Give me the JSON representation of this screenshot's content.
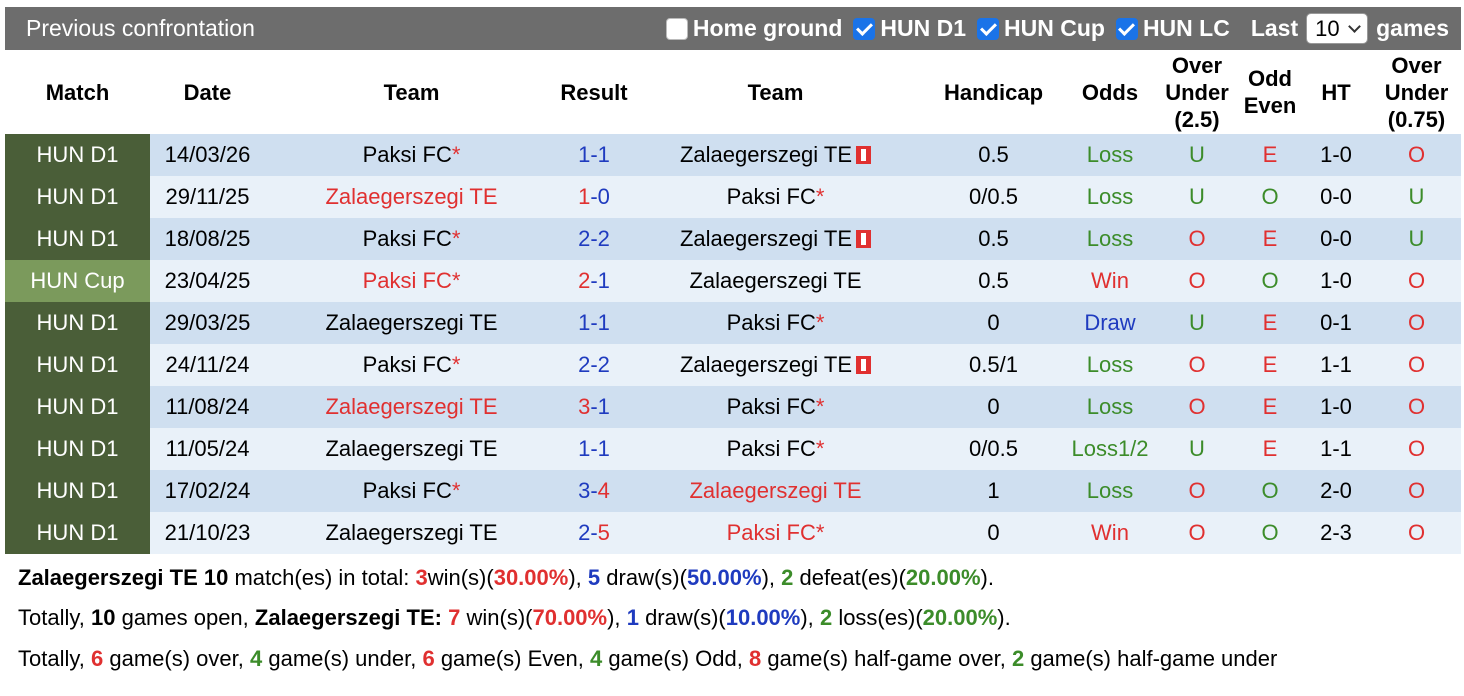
{
  "header": {
    "title": "Previous confrontation",
    "filters": [
      {
        "label": "Home ground",
        "checked": false
      },
      {
        "label": "HUN D1",
        "checked": true
      },
      {
        "label": "HUN Cup",
        "checked": true
      },
      {
        "label": "HUN LC",
        "checked": true
      }
    ],
    "last_label": "Last",
    "last_value": "10",
    "games_label": "games"
  },
  "columns": {
    "match": "Match",
    "date": "Date",
    "team": "Team",
    "result": "Result",
    "team2": "Team",
    "handicap": "Handicap",
    "odds": "Odds",
    "ou": "Over Under (2.5)",
    "oe": "Odd Even",
    "ht": "HT",
    "ou2": "Over Under (0.75)"
  },
  "rows": [
    {
      "league": "HUN D1",
      "cup": false,
      "date": "14/03/26",
      "home": "Paksi FC",
      "home_star": true,
      "home_red": false,
      "score_h": "1",
      "score_a": "1",
      "score_color": "blue",
      "away": "Zalaegerszegi TE",
      "away_star": false,
      "away_red": false,
      "away_badge": true,
      "handicap": "0.5",
      "odds": "Loss",
      "odds_color": "green",
      "ou": "U",
      "ou_color": "green",
      "oe": "E",
      "oe_color": "red",
      "ht": "1-0",
      "ou2": "O",
      "ou2_color": "red"
    },
    {
      "league": "HUN D1",
      "cup": false,
      "date": "29/11/25",
      "home": "Zalaegerszegi TE",
      "home_star": false,
      "home_red": true,
      "score_h": "1",
      "score_a": "0",
      "score_color": "red",
      "away": "Paksi FC",
      "away_star": true,
      "away_red": false,
      "away_badge": false,
      "handicap": "0/0.5",
      "odds": "Loss",
      "odds_color": "green",
      "ou": "U",
      "ou_color": "green",
      "oe": "O",
      "oe_color": "green",
      "ht": "0-0",
      "ou2": "U",
      "ou2_color": "green"
    },
    {
      "league": "HUN D1",
      "cup": false,
      "date": "18/08/25",
      "home": "Paksi FC",
      "home_star": true,
      "home_red": false,
      "score_h": "2",
      "score_a": "2",
      "score_color": "blue",
      "away": "Zalaegerszegi TE",
      "away_star": false,
      "away_red": false,
      "away_badge": true,
      "handicap": "0.5",
      "odds": "Loss",
      "odds_color": "green",
      "ou": "O",
      "ou_color": "red",
      "oe": "E",
      "oe_color": "red",
      "ht": "0-0",
      "ou2": "U",
      "ou2_color": "green"
    },
    {
      "league": "HUN Cup",
      "cup": true,
      "date": "23/04/25",
      "home": "Paksi FC",
      "home_star": true,
      "home_red": true,
      "score_h": "2",
      "score_a": "1",
      "score_color": "red",
      "away": "Zalaegerszegi TE",
      "away_star": false,
      "away_red": false,
      "away_badge": false,
      "handicap": "0.5",
      "odds": "Win",
      "odds_color": "red",
      "ou": "O",
      "ou_color": "red",
      "oe": "O",
      "oe_color": "green",
      "ht": "1-0",
      "ou2": "O",
      "ou2_color": "red"
    },
    {
      "league": "HUN D1",
      "cup": false,
      "date": "29/03/25",
      "home": "Zalaegerszegi TE",
      "home_star": false,
      "home_red": false,
      "score_h": "1",
      "score_a": "1",
      "score_color": "blue",
      "away": "Paksi FC",
      "away_star": true,
      "away_red": false,
      "away_badge": false,
      "handicap": "0",
      "odds": "Draw",
      "odds_color": "blue",
      "ou": "U",
      "ou_color": "green",
      "oe": "E",
      "oe_color": "red",
      "ht": "0-1",
      "ou2": "O",
      "ou2_color": "red"
    },
    {
      "league": "HUN D1",
      "cup": false,
      "date": "24/11/24",
      "home": "Paksi FC",
      "home_star": true,
      "home_red": false,
      "score_h": "2",
      "score_a": "2",
      "score_color": "blue",
      "away": "Zalaegerszegi TE",
      "away_star": false,
      "away_red": false,
      "away_badge": true,
      "handicap": "0.5/1",
      "odds": "Loss",
      "odds_color": "green",
      "ou": "O",
      "ou_color": "red",
      "oe": "E",
      "oe_color": "red",
      "ht": "1-1",
      "ou2": "O",
      "ou2_color": "red"
    },
    {
      "league": "HUN D1",
      "cup": false,
      "date": "11/08/24",
      "home": "Zalaegerszegi TE",
      "home_star": false,
      "home_red": true,
      "score_h": "3",
      "score_a": "1",
      "score_color": "red",
      "away": "Paksi FC",
      "away_star": true,
      "away_red": false,
      "away_badge": false,
      "handicap": "0",
      "odds": "Loss",
      "odds_color": "green",
      "ou": "O",
      "ou_color": "red",
      "oe": "E",
      "oe_color": "red",
      "ht": "1-0",
      "ou2": "O",
      "ou2_color": "red"
    },
    {
      "league": "HUN D1",
      "cup": false,
      "date": "11/05/24",
      "home": "Zalaegerszegi TE",
      "home_star": false,
      "home_red": false,
      "score_h": "1",
      "score_a": "1",
      "score_color": "blue",
      "away": "Paksi FC",
      "away_star": true,
      "away_red": false,
      "away_badge": false,
      "handicap": "0/0.5",
      "odds": "Loss1/2",
      "odds_color": "green",
      "ou": "U",
      "ou_color": "green",
      "oe": "E",
      "oe_color": "red",
      "ht": "1-1",
      "ou2": "O",
      "ou2_color": "red"
    },
    {
      "league": "HUN D1",
      "cup": false,
      "date": "17/02/24",
      "home": "Paksi FC",
      "home_star": true,
      "home_red": false,
      "score_h": "3",
      "score_a": "4",
      "score_color": "blue",
      "away": "Zalaegerszegi TE",
      "away_star": false,
      "away_red": true,
      "away_badge": false,
      "handicap": "1",
      "odds": "Loss",
      "odds_color": "green",
      "ou": "O",
      "ou_color": "red",
      "oe": "O",
      "oe_color": "green",
      "ht": "2-0",
      "ou2": "O",
      "ou2_color": "red"
    },
    {
      "league": "HUN D1",
      "cup": false,
      "date": "21/10/23",
      "home": "Zalaegerszegi TE",
      "home_star": false,
      "home_red": false,
      "score_h": "2",
      "score_a": "5",
      "score_color": "blue",
      "away": "Paksi FC",
      "away_star": true,
      "away_red": true,
      "away_badge": false,
      "handicap": "0",
      "odds": "Win",
      "odds_color": "red",
      "ou": "O",
      "ou_color": "red",
      "oe": "O",
      "oe_color": "green",
      "ht": "2-3",
      "ou2": "O",
      "ou2_color": "red"
    }
  ],
  "summary": {
    "line1": {
      "team": "Zalaegerszegi TE",
      "matches": "10",
      "t1": "match(es) in total:",
      "wins": "3",
      "t2": "win(s)(",
      "win_pct": "30.00%",
      "draws": "5",
      "t3": "draw(s)(",
      "draw_pct": "50.00%",
      "defeats": "2",
      "t4": "defeat(es)(",
      "defeat_pct": "20.00%"
    },
    "line2": {
      "t0": "Totally,",
      "games": "10",
      "t1": "games open,",
      "team": "Zalaegerszegi TE:",
      "wins": "7",
      "t2": "win(s)(",
      "win_pct": "70.00%",
      "draws": "1",
      "t3": "draw(s)(",
      "draw_pct": "10.00%",
      "losses": "2",
      "t4": "loss(es)(",
      "loss_pct": "20.00%"
    },
    "line3": {
      "t0": "Totally,",
      "over": "6",
      "t1": "game(s) over,",
      "under": "4",
      "t2": "game(s) under,",
      "even": "6",
      "t3": "game(s) Even,",
      "odd": "4",
      "t4": "game(s) Odd,",
      "hg_over": "8",
      "t5": "game(s) half-game over,",
      "hg_under": "2",
      "t6": "game(s) half-game under"
    }
  },
  "colors": {
    "red": "#e03030",
    "blue": "#1f3bbf",
    "green": "#3c8c2a",
    "league_bg": "#4a5e38",
    "cup_bg": "#7b9a5c",
    "title_bg": "#6d6d6d"
  }
}
